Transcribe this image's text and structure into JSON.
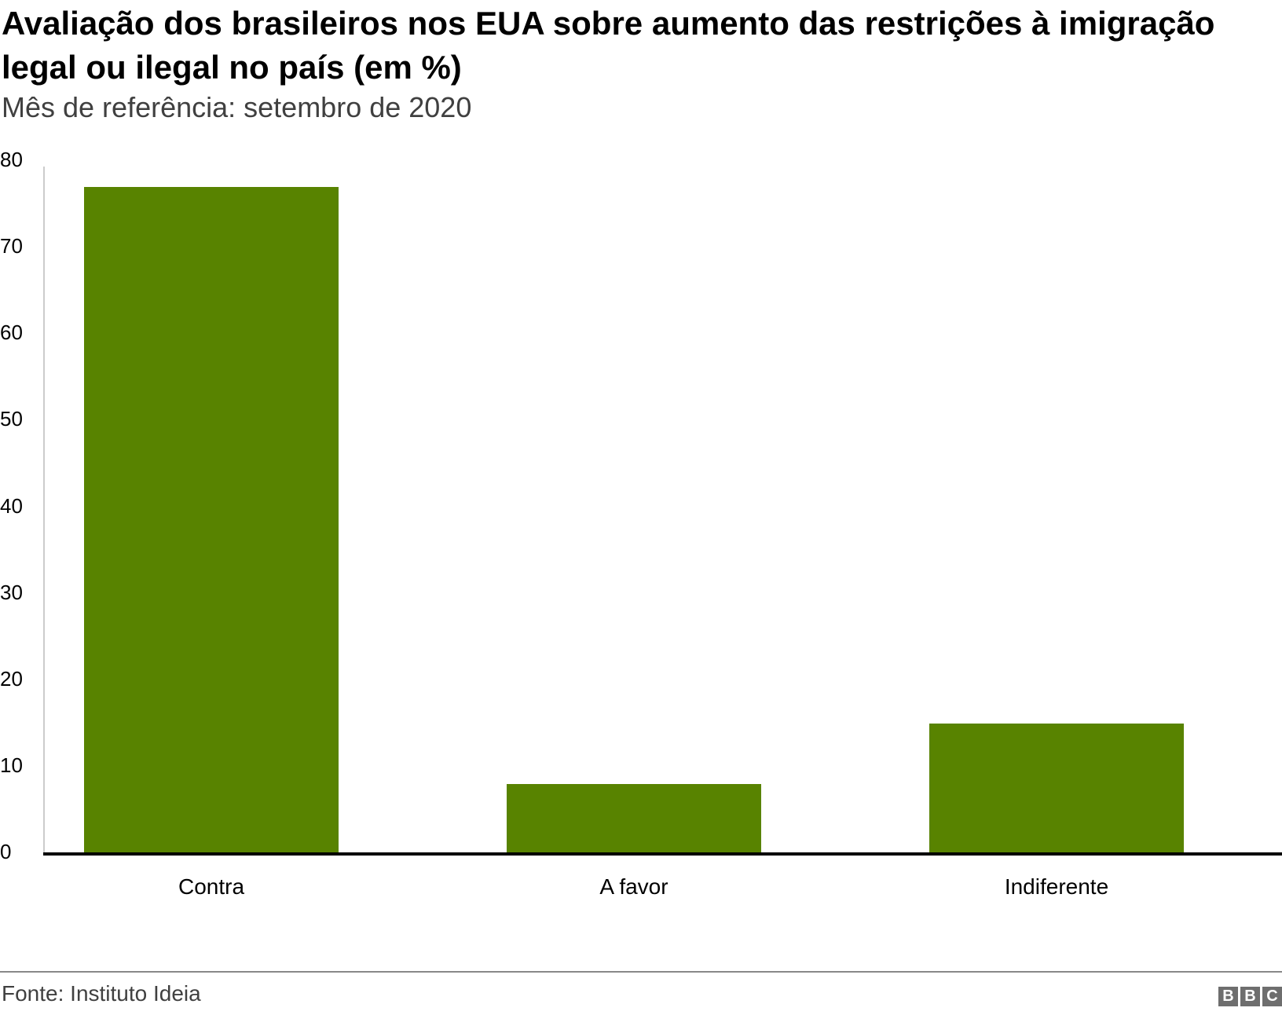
{
  "header": {
    "title": "Avaliação dos brasileiros nos EUA sobre aumento das restrições à imigração legal ou ilegal no país (em %)",
    "subtitle": "Mês de referência: setembro de 2020"
  },
  "footer": {
    "source": "Fonte: Instituto Ideia",
    "logo_letters": [
      "B",
      "B",
      "C"
    ]
  },
  "colors": {
    "bar": "#588300",
    "axis": "#000000",
    "gridline": "#cccccc"
  },
  "chart_data": {
    "type": "bar",
    "title": "Avaliação dos brasileiros nos EUA sobre aumento das restrições à imigração legal ou ilegal no país (em %)",
    "subtitle": "Mês de referência: setembro de 2020",
    "categories": [
      "Contra",
      "A favor",
      "Indiferente"
    ],
    "values": [
      77,
      8,
      15
    ],
    "xlabel": "",
    "ylabel": "",
    "ylim": [
      0,
      80
    ],
    "yticks": [
      "0",
      "10",
      "20",
      "30",
      "40",
      "50",
      "60",
      "70",
      "80"
    ],
    "grid": false,
    "legend": null,
    "source": "Fonte: Instituto Ideia"
  }
}
